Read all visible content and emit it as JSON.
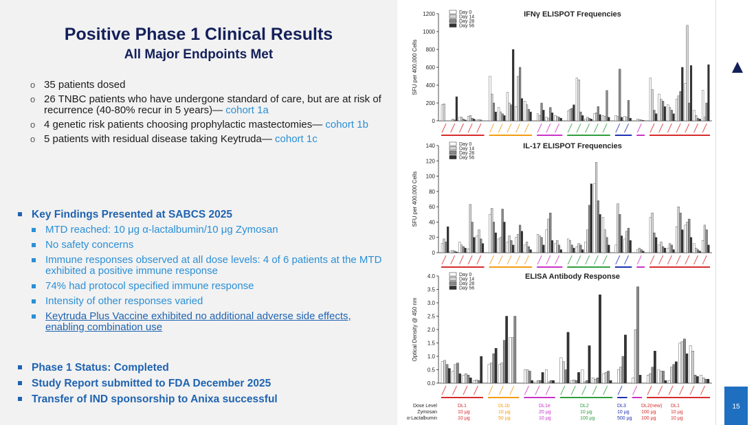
{
  "slide": {
    "title": "Positive Phase 1 Clinical Results",
    "subtitle": "All Major Endpoints Met",
    "page_number": "15",
    "brand": "anixa"
  },
  "patients": [
    {
      "text": "35 patients dosed",
      "cohort": ""
    },
    {
      "text": "26 TNBC patients who have undergone standard of care, but are at risk of recurrence (40-80% recur in 5 years)—",
      "cohort": "cohort 1a"
    },
    {
      "text": "4 genetic risk patients choosing prophylactic mastectomies—",
      "cohort": "cohort 1b"
    },
    {
      "text": "5 patients with residual disease taking Keytruda—",
      "cohort": "cohort 1c"
    }
  ],
  "key_findings": {
    "heading": "Key Findings Presented at SABCS 2025",
    "items": [
      "MTD reached: 10 μg α-lactalbumin/10 μg Zymosan",
      "No safety concerns",
      "Immune responses observed at all dose levels: 4 of 6 patients at the MTD exhibited a positive immune response",
      "74% had protocol specified immune response",
      "Intensity of other responses varied",
      "Keytruda Plus Vaccine exhibited no additional adverse side effects, enabling combination use"
    ]
  },
  "status": [
    "Phase 1 Status: Completed",
    "Study Report submitted to FDA December 2025",
    "Transfer of IND sponsorship to Anixa successful"
  ],
  "legend": [
    "Day 0",
    "Day 14",
    "Day 28",
    "Day 56"
  ],
  "colors": {
    "navy": "#14205a",
    "blue": "#1f63b0",
    "light_blue": "#2a8fd6",
    "group_colors": [
      "#d62b2b",
      "#f39c12",
      "#c832c8",
      "#2e9e3c",
      "#1f2fb0",
      "#d62b2b"
    ],
    "series_fill": [
      "#ffffff",
      "#d4d4d4",
      "#8a8a8a",
      "#333333"
    ]
  },
  "dose_table": {
    "row_labels": [
      "Dose Level",
      "Zymosan",
      "α-Lactalbumin"
    ],
    "columns": [
      {
        "level": "DL1",
        "zymosan": "10 μg",
        "alac": "10 μg"
      },
      {
        "level": "DL1b",
        "zymosan": "10 μg",
        "alac": "50 μg"
      },
      {
        "level": "DL1e",
        "zymosan": "20 μg",
        "alac": "10 μg"
      },
      {
        "level": "DL2",
        "zymosan": "10 μg",
        "alac": "100 μg"
      },
      {
        "level": "DL3",
        "zymosan": "10 μg",
        "alac": "500 μg"
      },
      {
        "level": "DL2(new)",
        "zymosan": "100 μg",
        "alac": "100 μg"
      },
      {
        "level": "DL1",
        "zymosan": "10 μg",
        "alac": "10 μg"
      }
    ]
  },
  "chart_data": [
    {
      "type": "bar",
      "title": "IFNγ ELISPOT Frequencies",
      "ylabel": "SFU per 400,000 Cells",
      "ylim": [
        0,
        1200
      ],
      "yticks": [
        0,
        200,
        400,
        600,
        800,
        1000,
        1200
      ],
      "legend": [
        "Day 0",
        "Day 14",
        "Day 28",
        "Day 56"
      ],
      "groups": [
        {
          "color": "#d62b2b",
          "patients": [
            [
              180,
              190,
              0,
              0
            ],
            [
              0,
              20,
              10,
              270
            ],
            [
              40,
              40,
              20,
              10
            ],
            [
              50,
              60,
              30,
              20
            ],
            [
              10,
              15,
              10,
              0
            ]
          ]
        },
        {
          "color": "#f39c12",
          "patients": [
            [
              500,
              300,
              200,
              100
            ],
            [
              150,
              100,
              80,
              60
            ],
            [
              320,
              200,
              180,
              800
            ],
            [
              160,
              500,
              600,
              250
            ],
            [
              220,
              180,
              130,
              100
            ]
          ]
        },
        {
          "color": "#c832c8",
          "patients": [
            [
              80,
              60,
              200,
              120
            ],
            [
              40,
              30,
              150,
              90
            ],
            [
              60,
              50,
              40,
              30
            ]
          ]
        },
        {
          "color": "#2e9e3c",
          "patients": [
            [
              110,
              130,
              140,
              180
            ],
            [
              480,
              460,
              100,
              60
            ],
            [
              20,
              40,
              30,
              20
            ],
            [
              80,
              90,
              160,
              70
            ],
            [
              60,
              50,
              340,
              40
            ]
          ]
        },
        {
          "color": "#1f2fb0",
          "patients": [
            [
              60,
              50,
              580,
              40
            ],
            [
              50,
              40,
              230,
              30
            ]
          ]
        },
        {
          "color": "#c832c8",
          "patients": [
            [
              20,
              15,
              10,
              5
            ]
          ]
        },
        {
          "color": "#d62b2b",
          "patients": [
            [
              480,
              350,
              120,
              80
            ],
            [
              300,
              240,
              220,
              160
            ],
            [
              180,
              150,
              120,
              80
            ],
            [
              240,
              280,
              330,
              600
            ],
            [
              420,
              1070,
              200,
              620
            ],
            [
              120,
              60,
              30,
              20
            ],
            [
              340,
              40,
              200,
              630
            ]
          ]
        }
      ]
    },
    {
      "type": "bar",
      "title": "IL-17 ELISPOT Frequencies",
      "ylabel": "SFU per 400,000 Cells",
      "ylim": [
        0,
        140
      ],
      "yticks": [
        0,
        20,
        40,
        60,
        80,
        100,
        120,
        140
      ],
      "legend": [
        "Day 0",
        "Day 14",
        "Day 28",
        "Day 56"
      ],
      "groups": [
        {
          "color": "#d62b2b",
          "patients": [
            [
              12,
              18,
              14,
              34
            ],
            [
              2,
              3,
              2,
              1
            ],
            [
              14,
              10,
              8,
              6
            ],
            [
              5,
              63,
              40,
              20
            ],
            [
              22,
              30,
              18,
              12
            ]
          ]
        },
        {
          "color": "#f39c12",
          "patients": [
            [
              50,
              58,
              40,
              26
            ],
            [
              18,
              20,
              57,
              40
            ],
            [
              14,
              22,
              16,
              10
            ],
            [
              20,
              24,
              36,
              28
            ],
            [
              10,
              14,
              8,
              4
            ]
          ]
        },
        {
          "color": "#c832c8",
          "patients": [
            [
              24,
              22,
              20,
              10
            ],
            [
              30,
              44,
              52,
              16
            ],
            [
              12,
              16,
              10,
              4
            ]
          ]
        },
        {
          "color": "#2e9e3c",
          "patients": [
            [
              18,
              16,
              10,
              6
            ],
            [
              8,
              12,
              10,
              4
            ],
            [
              14,
              30,
              62,
              90
            ],
            [
              90,
              118,
              68,
              50
            ],
            [
              46,
              30,
              20,
              10
            ]
          ]
        },
        {
          "color": "#1f2fb0",
          "patients": [
            [
              10,
              64,
              50,
              22
            ],
            [
              18,
              28,
              32,
              16
            ]
          ]
        },
        {
          "color": "#c832c8",
          "patients": [
            [
              4,
              6,
              4,
              2
            ]
          ]
        },
        {
          "color": "#d62b2b",
          "patients": [
            [
              46,
              52,
              26,
              20
            ],
            [
              10,
              14,
              8,
              6
            ],
            [
              6,
              12,
              10,
              4
            ],
            [
              34,
              60,
              52,
              30
            ],
            [
              36,
              40,
              44,
              20
            ],
            [
              12,
              6,
              4,
              2
            ],
            [
              16,
              36,
              30,
              10
            ]
          ]
        }
      ]
    },
    {
      "type": "bar",
      "title": "ELISA Antibody Response",
      "ylabel": "Optical Density @ 450 nm",
      "ylim": [
        0,
        4.0
      ],
      "yticks": [
        0.0,
        0.5,
        1.0,
        1.5,
        2.0,
        2.5,
        3.0,
        3.5,
        4.0
      ],
      "legend": [
        "Day 0",
        "Day 14",
        "Day 28",
        "Day 56"
      ],
      "groups": [
        {
          "color": "#d62b2b",
          "patients": [
            [
              0.8,
              0.85,
              0.7,
              0.55
            ],
            [
              0.45,
              0.7,
              0.75,
              0.35
            ],
            [
              0.3,
              0.35,
              0.3,
              0.2
            ],
            [
              0.1,
              0.12,
              0.1,
              1.0
            ]
          ]
        },
        {
          "color": "#f39c12",
          "patients": [
            [
              0.7,
              0.75,
              1.1,
              1.3
            ],
            [
              0.7,
              0.75,
              1.6,
              2.5
            ],
            [
              1.7,
              1.7,
              2.5,
              0.0
            ]
          ]
        },
        {
          "color": "#c832c8",
          "patients": [
            [
              0.5,
              0.5,
              0.45,
              0.1
            ],
            [
              0.05,
              0.1,
              0.1,
              0.4
            ],
            [
              0.5,
              0.05,
              0.1,
              0.1
            ]
          ]
        },
        {
          "color": "#2e9e3c",
          "patients": [
            [
              0.95,
              0.8,
              0.5,
              1.9
            ],
            [
              0.1,
              0.12,
              0.1,
              0.4
            ],
            [
              0.5,
              0.05,
              0.1,
              1.4
            ],
            [
              0.2,
              0.15,
              0.2,
              3.3
            ],
            [
              0.35,
              0.4,
              0.45,
              0.1
            ]
          ]
        },
        {
          "color": "#1f2fb0",
          "patients": [
            [
              0.5,
              0.6,
              1.0,
              1.8
            ]
          ]
        },
        {
          "color": "#c832c8",
          "patients": [
            [
              0.2,
              2.0,
              3.6,
              0.3
            ]
          ]
        },
        {
          "color": "#d62b2b",
          "patients": [
            [
              0.3,
              0.35,
              0.6,
              1.2
            ],
            [
              0.5,
              0.45,
              0.45,
              0.1
            ],
            [
              0.1,
              0.6,
              0.7,
              0.8
            ],
            [
              1.5,
              1.55,
              1.65,
              1.1
            ],
            [
              1.4,
              1.2,
              0.3,
              0.25
            ],
            [
              0.3,
              0.2,
              0.15,
              0.15
            ]
          ]
        }
      ]
    }
  ]
}
